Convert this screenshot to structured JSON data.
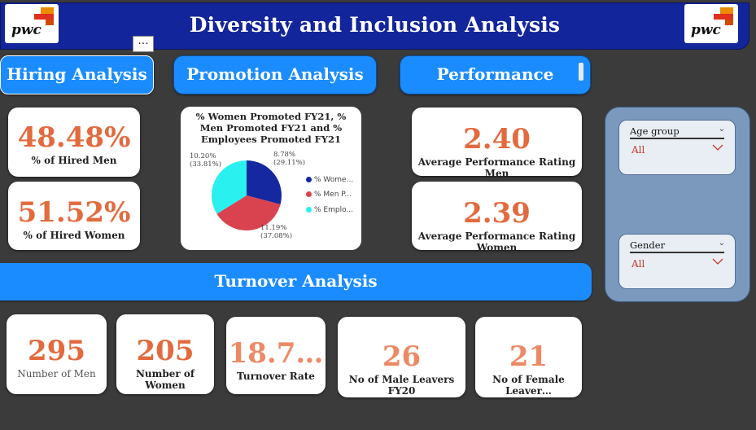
{
  "header": {
    "title": "Diversity and Inclusion Analysis",
    "logo_text": "pwc",
    "more_options": "..."
  },
  "tabs": [
    {
      "label": "Hiring Analysis"
    },
    {
      "label": "Promotion Analysis"
    },
    {
      "label": "Performance"
    }
  ],
  "hiring": {
    "men_value": "48.48%",
    "men_label": "% of Hired Men",
    "women_value": "51.52%",
    "women_label": "% of Hired Women"
  },
  "promotion_chart": {
    "title": "% Women Promoted FY21, % Men Promoted FY21 and % Employees Promoted FY21",
    "legend": [
      "% Wome...",
      "% Men P...",
      "% Emplo..."
    ],
    "colors": [
      "#1528a0",
      "#d9434f",
      "#2af0f0"
    ],
    "slice_labels": [
      {
        "value": "8.78%",
        "pct": "(29.11%)"
      },
      {
        "value": "11.19%",
        "pct": "(37.08%)"
      },
      {
        "value": "10.20%",
        "pct": "(33.81%)"
      }
    ]
  },
  "chart_data": {
    "type": "pie",
    "title": "% Women Promoted FY21, % Men Promoted FY21 and % Employees Promoted FY21",
    "labels": [
      "% Wome...",
      "% Men P...",
      "% Emplo..."
    ],
    "values": [
      8.78,
      11.19,
      10.2
    ],
    "percentages": [
      29.11,
      37.08,
      33.81
    ],
    "legend_position": "right"
  },
  "performance": {
    "men_value": "2.40",
    "men_label": "Average Performance Rating Men",
    "women_value": "2.39",
    "women_label": "Average Performance Rating Women"
  },
  "slicers": [
    {
      "title": "Age group",
      "value": "All"
    },
    {
      "title": "Gender",
      "value": "All"
    }
  ],
  "turnover": {
    "title": "Turnover Analysis",
    "cards": [
      {
        "value": "295",
        "label": "Number of Men"
      },
      {
        "value": "205",
        "label": "Number of Women"
      },
      {
        "value": "18.7…",
        "label": "Turnover Rate"
      },
      {
        "value": "26",
        "label": "No of Male Leavers FY20"
      },
      {
        "value": "21",
        "label": "No of Female Leaver…"
      }
    ]
  }
}
